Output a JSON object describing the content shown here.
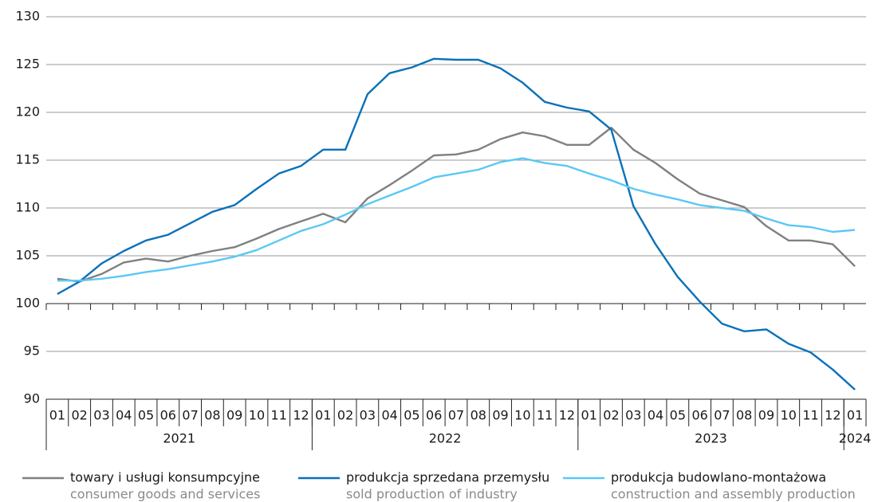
{
  "chart_data": {
    "type": "line",
    "categories": [
      "01",
      "02",
      "03",
      "04",
      "05",
      "06",
      "07",
      "08",
      "09",
      "10",
      "11",
      "12",
      "01",
      "02",
      "03",
      "04",
      "05",
      "06",
      "07",
      "08",
      "09",
      "10",
      "11",
      "12",
      "01",
      "02",
      "03",
      "04",
      "05",
      "06",
      "07",
      "08",
      "09",
      "10",
      "11",
      "12",
      "01"
    ],
    "x_groups": [
      "2021",
      "2022",
      "2023",
      "2024"
    ],
    "ylim": [
      90,
      130
    ],
    "yticks": [
      90,
      95,
      100,
      105,
      110,
      115,
      120,
      125,
      130
    ],
    "grid": true,
    "x_axis_crosses": 100,
    "series": [
      {
        "name": "towary i usługi konsumpcyjne",
        "name_en": "consumer goods and services",
        "color": "#808080",
        "values": [
          102.6,
          102.3,
          103.1,
          104.3,
          104.7,
          104.4,
          105.0,
          105.5,
          105.9,
          106.8,
          107.8,
          108.6,
          109.4,
          108.5,
          111.0,
          112.4,
          113.9,
          115.5,
          115.6,
          116.1,
          117.2,
          117.9,
          117.5,
          116.6,
          116.6,
          118.4,
          116.1,
          114.7,
          113.0,
          111.5,
          110.8,
          110.1,
          108.1,
          106.6,
          106.6,
          106.2,
          103.9
        ]
      },
      {
        "name": "produkcja sprzedana przemysłu",
        "name_en": "sold production of industry",
        "color": "#0a71b9",
        "values": [
          101.0,
          102.3,
          104.2,
          105.5,
          106.6,
          107.2,
          108.4,
          109.6,
          110.3,
          112.0,
          113.6,
          114.4,
          116.1,
          116.1,
          121.9,
          124.1,
          124.7,
          125.6,
          125.5,
          125.5,
          124.6,
          123.1,
          121.1,
          120.5,
          120.1,
          118.2,
          110.2,
          106.2,
          102.8,
          100.2,
          97.9,
          97.1,
          97.3,
          95.8,
          94.9,
          93.1,
          91.0
        ]
      },
      {
        "name": "produkcja budowlano-montażowa",
        "name_en": "construction and assembly production",
        "color": "#5bc8f5",
        "values": [
          102.4,
          102.4,
          102.6,
          102.9,
          103.3,
          103.6,
          104.0,
          104.4,
          104.9,
          105.6,
          106.6,
          107.6,
          108.3,
          109.3,
          110.4,
          111.3,
          112.2,
          113.2,
          113.6,
          114.0,
          114.8,
          115.2,
          114.7,
          114.4,
          113.6,
          112.9,
          112.0,
          111.4,
          110.9,
          110.3,
          110.0,
          109.7,
          108.9,
          108.2,
          108.0,
          107.5,
          107.7
        ]
      }
    ]
  }
}
